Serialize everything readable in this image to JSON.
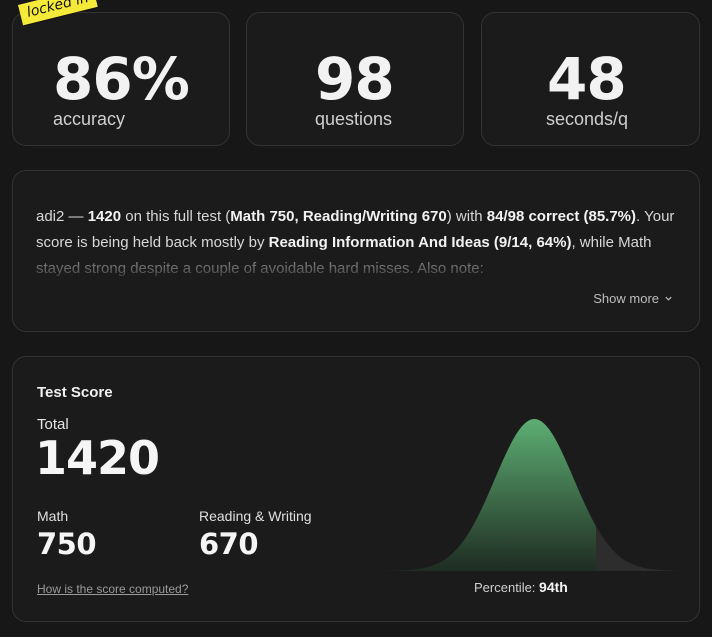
{
  "badge": {
    "text": "locked in"
  },
  "stats": [
    {
      "value": "86%",
      "label": "accuracy"
    },
    {
      "value": "98",
      "label": "questions"
    },
    {
      "value": "48",
      "label": "seconds/q"
    }
  ],
  "summary": {
    "segments": [
      {
        "text": "adi2 — ",
        "bold": false
      },
      {
        "text": "1420",
        "bold": true
      },
      {
        "text": " on this full test (",
        "bold": false
      },
      {
        "text": "Math 750, Reading/Writing 670",
        "bold": true
      },
      {
        "text": ") with ",
        "bold": false
      },
      {
        "text": "84/98 correct (85.7%)",
        "bold": true
      },
      {
        "text": ". Your score is being held back mostly by ",
        "bold": false
      },
      {
        "text": "Reading Information And Ideas (9/14, 64%)",
        "bold": true
      },
      {
        "text": ", while Math stayed strong despite a couple of avoidable hard misses. Also note:",
        "bold": false
      }
    ],
    "show_more_label": "Show more"
  },
  "score": {
    "title": "Test Score",
    "total_label": "Total",
    "total_value": "1420",
    "math_label": "Math",
    "math_value": "750",
    "rw_label": "Reading & Writing",
    "rw_value": "670",
    "how_link": "How is the score computed?",
    "percentile_label": "Percentile:",
    "percentile_value": "94th",
    "percentile_fraction": 0.94
  },
  "colors": {
    "curve_top": "#5dae73",
    "curve_bottom": "#1f2c22",
    "tail": "#2d2d2d",
    "badge": "#f5ea3a"
  }
}
